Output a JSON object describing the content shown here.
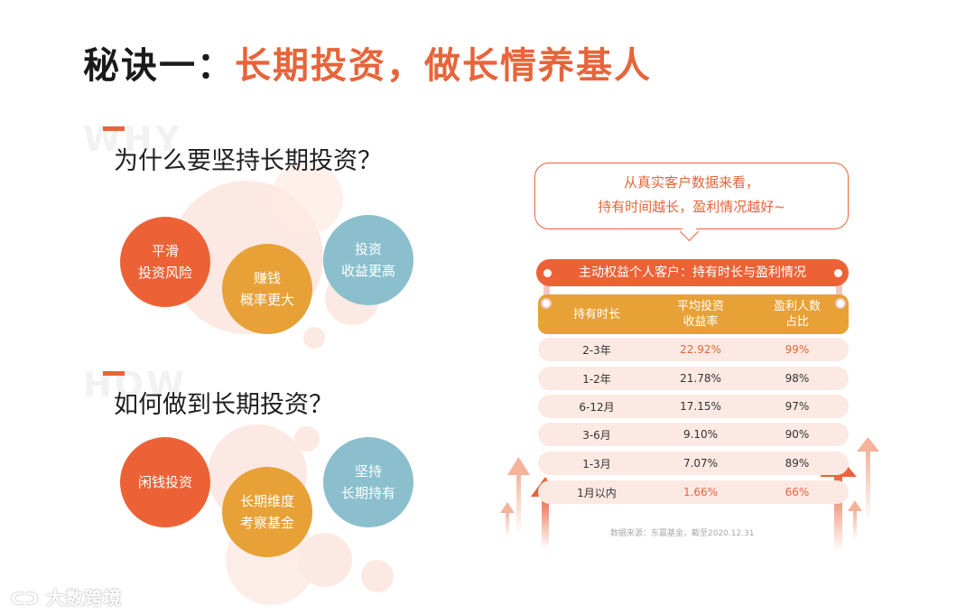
{
  "title": {
    "prefix": "秘诀一：",
    "main": "长期投资，做长情养基人"
  },
  "why": {
    "ghost": "WHY",
    "heading": "为什么要坚持长期投资？",
    "circles": [
      {
        "line1": "平滑",
        "line2": "投资风险",
        "color": "#ec6236"
      },
      {
        "line1": "赚钱",
        "line2": "概率更大",
        "color": "#e7a137"
      },
      {
        "line1": "投资",
        "line2": "收益更高",
        "color": "#8bbfce"
      }
    ]
  },
  "how": {
    "ghost": "HOW",
    "heading": "如何做到长期投资？",
    "circles": [
      {
        "line1": "闲钱投资",
        "line2": "",
        "color": "#ec6236"
      },
      {
        "line1": "长期维度",
        "line2": "考察基金",
        "color": "#e7a137"
      },
      {
        "line1": "坚持",
        "line2": "长期持有",
        "color": "#8bbfce"
      }
    ]
  },
  "bubble": {
    "line1": "从真实客户数据来看，",
    "line2": "持有时间越长，盈利情况越好~"
  },
  "table": {
    "title": "主动权益个人客户：持有时长与盈利情况",
    "headers": [
      {
        "l1": "持有时长",
        "l2": ""
      },
      {
        "l1": "平均投资",
        "l2": "收益率"
      },
      {
        "l1": "盈利人数",
        "l2": "占比"
      }
    ],
    "rows": [
      {
        "period": "2-3年",
        "return": "22.92%",
        "ratio": "99%"
      },
      {
        "period": "1-2年",
        "return": "21.78%",
        "ratio": "98%"
      },
      {
        "period": "6-12月",
        "return": "17.15%",
        "ratio": "97%"
      },
      {
        "period": "3-6月",
        "return": "9.10%",
        "ratio": "90%"
      },
      {
        "period": "1-3月",
        "return": "7.07%",
        "ratio": "89%"
      },
      {
        "period": "1月以内",
        "return": "1.66%",
        "ratio": "66%"
      }
    ],
    "source": "数据来源：东赢基金，截至2020.12.31"
  },
  "colors": {
    "accent": "#e8643a",
    "yellow": "#e7a137",
    "blue": "#8bbfce",
    "pink": "#fde9e3"
  },
  "watermark": "大数跨境"
}
